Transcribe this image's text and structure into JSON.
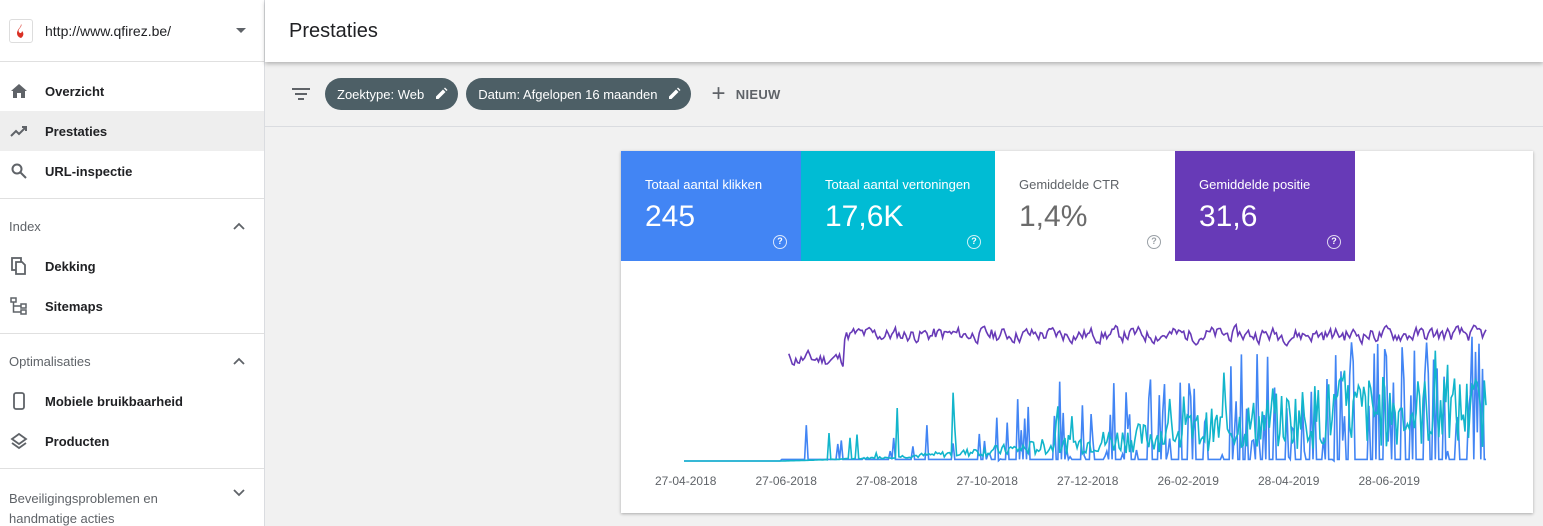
{
  "property": {
    "url": "http://www.qfirez.be/",
    "icon": "flame-favicon"
  },
  "nav": {
    "overview": "Overzicht",
    "performance": "Prestaties",
    "url_inspection": "URL-inspectie"
  },
  "sections": {
    "index": {
      "title": "Index",
      "items": [
        "Dekking",
        "Sitemaps"
      ]
    },
    "optimization": {
      "title": "Optimalisaties",
      "items": [
        "Mobiele bruikbaarheid",
        "Producten"
      ]
    },
    "security": {
      "line1": "Beveiligingsproblemen en",
      "line2": "handmatige acties"
    }
  },
  "header": {
    "title": "Prestaties"
  },
  "filters": {
    "chips": [
      "Zoektype: Web",
      "Datum: Afgelopen 16 maanden"
    ],
    "new_label": "NIEUW"
  },
  "metrics": [
    {
      "label": "Totaal aantal klikken",
      "value": "245",
      "color": "#4285f4"
    },
    {
      "label": "Totaal aantal vertoningen",
      "value": "17,6K",
      "color": "#00bcd4"
    },
    {
      "label": "Gemiddelde CTR",
      "value": "1,4%",
      "color": "#ffffff"
    },
    {
      "label": "Gemiddelde positie",
      "value": "31,6",
      "color": "#673ab7"
    }
  ],
  "chart_data": {
    "type": "line",
    "x_ticks": [
      "27-04-2018",
      "27-06-2018",
      "27-08-2018",
      "27-10-2018",
      "27-12-2018",
      "26-02-2019",
      "28-04-2019",
      "28-06-2019"
    ],
    "series": [
      {
        "name": "Totaal aantal klikken",
        "color": "#4285f4",
        "seed": 3,
        "start": 0.12,
        "base": 0.0,
        "amp": 0.55,
        "spiky": true
      },
      {
        "name": "Totaal aantal vertoningen",
        "color": "#12b5cb",
        "seed": 7,
        "start": 0.12,
        "base": 0.08,
        "amp": 0.45,
        "spiky": false
      },
      {
        "name": "Gemiddelde positie",
        "color": "#673ab7",
        "seed": 11,
        "start": 0.13,
        "base": 0.78,
        "amp": 0.08,
        "spiky": false
      }
    ],
    "grid": false,
    "legend": "none"
  }
}
